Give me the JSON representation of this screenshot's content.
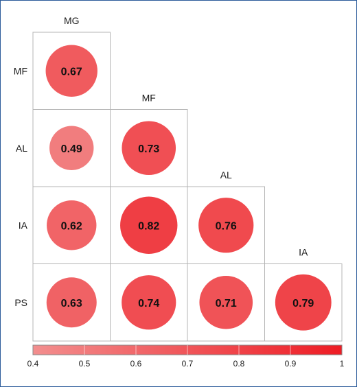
{
  "chart_data": {
    "type": "heatmap",
    "subtype": "correlogram-lower-triangle",
    "row_labels": [
      "MF",
      "AL",
      "IA",
      "PS"
    ],
    "column_labels": [
      "MG",
      "MF",
      "AL",
      "IA"
    ],
    "cells": [
      {
        "row": "MF",
        "col": "MG",
        "value": 0.67,
        "label": "0.67"
      },
      {
        "row": "AL",
        "col": "MG",
        "value": 0.49,
        "label": "0.49"
      },
      {
        "row": "AL",
        "col": "MF",
        "value": 0.73,
        "label": "0.73"
      },
      {
        "row": "IA",
        "col": "MG",
        "value": 0.62,
        "label": "0.62"
      },
      {
        "row": "IA",
        "col": "MF",
        "value": 0.82,
        "label": "0.82"
      },
      {
        "row": "IA",
        "col": "AL",
        "value": 0.76,
        "label": "0.76"
      },
      {
        "row": "PS",
        "col": "MG",
        "value": 0.63,
        "label": "0.63"
      },
      {
        "row": "PS",
        "col": "MF",
        "value": 0.74,
        "label": "0.74"
      },
      {
        "row": "PS",
        "col": "AL",
        "value": 0.71,
        "label": "0.71"
      },
      {
        "row": "PS",
        "col": "IA",
        "value": 0.79,
        "label": "0.79"
      }
    ],
    "colorbar": {
      "range": [
        0.4,
        1
      ],
      "ticks": [
        0.4,
        0.5,
        0.6,
        0.7,
        0.8,
        0.9,
        1
      ],
      "tick_labels": [
        "0.4",
        "0.5",
        "0.6",
        "0.7",
        "0.8",
        "0.9",
        "1"
      ],
      "color_low": "#f28e8e",
      "color_high": "#ee1c24"
    },
    "title": "",
    "xlabel": "",
    "ylabel": "",
    "legend": "bottom"
  },
  "colors": {
    "frame_border": "#2a5a9a",
    "grid_line": "#b4b4b4",
    "text": "#1a1a1a"
  }
}
